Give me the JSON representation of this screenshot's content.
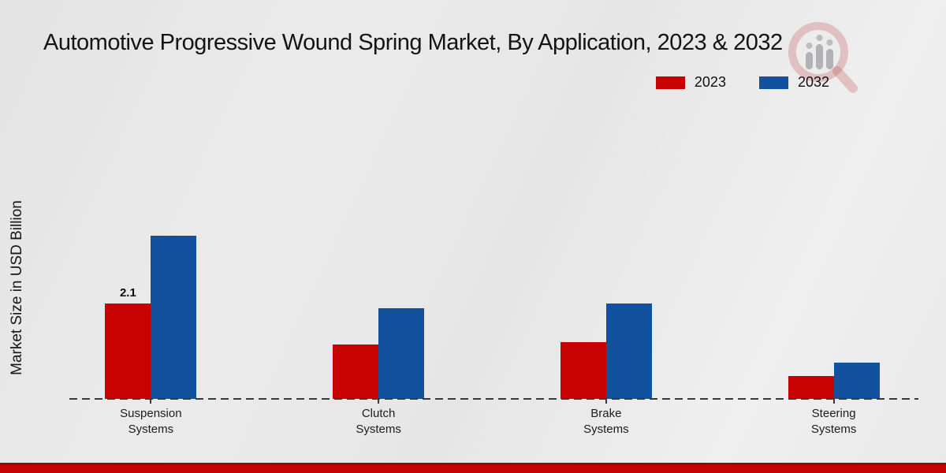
{
  "header": {
    "title": "Automotive Progressive Wound Spring Market, By Application, 2023 & 2032"
  },
  "legend": {
    "items": [
      {
        "label": "2023",
        "color": "#c80202"
      },
      {
        "label": "2032",
        "color": "#11519e"
      }
    ]
  },
  "y_axis": {
    "label": "Market Size in USD Billion"
  },
  "chart_data": {
    "type": "bar",
    "title": "Automotive Progressive Wound Spring Market, By Application, 2023 & 2032",
    "xlabel": "",
    "ylabel": "Market Size in USD Billion",
    "categories": [
      "Suspension\nSystems",
      "Clutch\nSystems",
      "Brake\nSystems",
      "Steering\nSystems"
    ],
    "series": [
      {
        "name": "2023",
        "color": "#c80202",
        "values": [
          2.1,
          1.2,
          1.25,
          0.5
        ]
      },
      {
        "name": "2032",
        "color": "#11519e",
        "values": [
          3.6,
          2.0,
          2.1,
          0.8
        ]
      }
    ],
    "data_labels": [
      {
        "series_index": 0,
        "category_index": 0,
        "text": "2.1"
      }
    ],
    "ylim": [
      0,
      4
    ],
    "grid": false,
    "legend_position": "top-right",
    "baseline_style": "dashed"
  },
  "footer": {
    "accent_color": "#c40404"
  }
}
